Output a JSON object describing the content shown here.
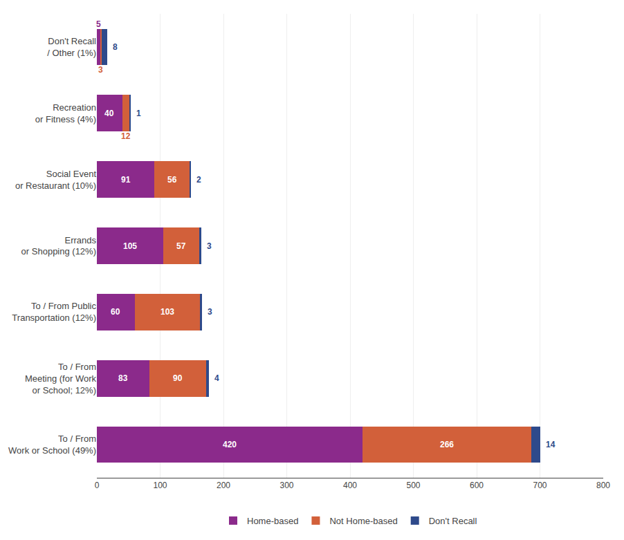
{
  "chart_data": {
    "type": "bar",
    "orientation": "horizontal",
    "stacked": true,
    "categories": [
      "To / From\nWork or School (49%)",
      "To / From\nMeeting (for Work\nor School; 12%)",
      "To / From Public\nTransportation (12%)",
      "Errands\nor Shopping (12%)",
      "Social Event\nor Restaurant (10%)",
      "Recreation\nor Fitness (4%)",
      "Don't Recall\n/ Other (1%)"
    ],
    "series": [
      {
        "name": "Home-based",
        "color": "#8B2A8B",
        "values": [
          420,
          83,
          60,
          105,
          91,
          40,
          5
        ]
      },
      {
        "name": "Not Home-based",
        "color": "#D2603A",
        "values": [
          266,
          90,
          103,
          57,
          56,
          12,
          3
        ]
      },
      {
        "name": "Don't Recall",
        "color": "#2E4A8B",
        "values": [
          14,
          4,
          3,
          3,
          2,
          1,
          8
        ]
      }
    ],
    "xlim": [
      0,
      800
    ],
    "xticks": [
      0,
      100,
      200,
      300,
      400,
      500,
      600,
      700,
      800
    ],
    "grid": true,
    "legend": "bottom",
    "data_labels": true
  }
}
